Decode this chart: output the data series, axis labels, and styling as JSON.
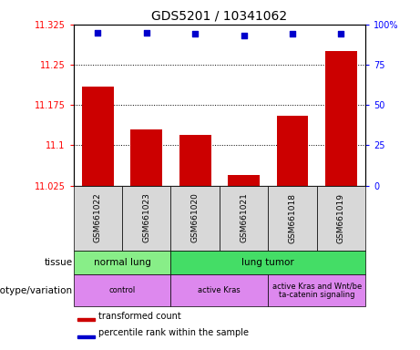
{
  "title": "GDS5201 / 10341062",
  "samples": [
    "GSM661022",
    "GSM661023",
    "GSM661020",
    "GSM661021",
    "GSM661018",
    "GSM661019"
  ],
  "bar_values": [
    11.21,
    11.13,
    11.12,
    11.045,
    11.155,
    11.275
  ],
  "percentile_values": [
    95,
    95,
    94,
    93,
    94,
    94
  ],
  "ylim_left": [
    11.025,
    11.325
  ],
  "ylim_right": [
    0,
    100
  ],
  "yticks_left": [
    11.025,
    11.1,
    11.175,
    11.25,
    11.325
  ],
  "ytick_labels_left": [
    "11.025",
    "11.1",
    "11.175",
    "11.25",
    "11.325"
  ],
  "yticks_right": [
    0,
    25,
    50,
    75,
    100
  ],
  "ytick_labels_right": [
    "0",
    "25",
    "50",
    "75",
    "100%"
  ],
  "bar_color": "#cc0000",
  "dot_color": "#0000cc",
  "sample_box_color": "#d8d8d8",
  "tissue_data": [
    {
      "text": "normal lung",
      "start": 0,
      "end": 1,
      "color": "#88ee88"
    },
    {
      "text": "lung tumor",
      "start": 2,
      "end": 5,
      "color": "#44dd66"
    }
  ],
  "genotype_data": [
    {
      "text": "control",
      "start": 0,
      "end": 1,
      "color": "#dd88ee"
    },
    {
      "text": "active Kras",
      "start": 2,
      "end": 3,
      "color": "#dd88ee"
    },
    {
      "text": "active Kras and Wnt/be\nta-catenin signaling",
      "start": 4,
      "end": 5,
      "color": "#dd88ee"
    }
  ],
  "legend_items": [
    {
      "color": "#cc0000",
      "label": "transformed count"
    },
    {
      "color": "#0000cc",
      "label": "percentile rank within the sample"
    }
  ],
  "row_label_tissue": "tissue",
  "row_label_genotype": "genotype/variation"
}
